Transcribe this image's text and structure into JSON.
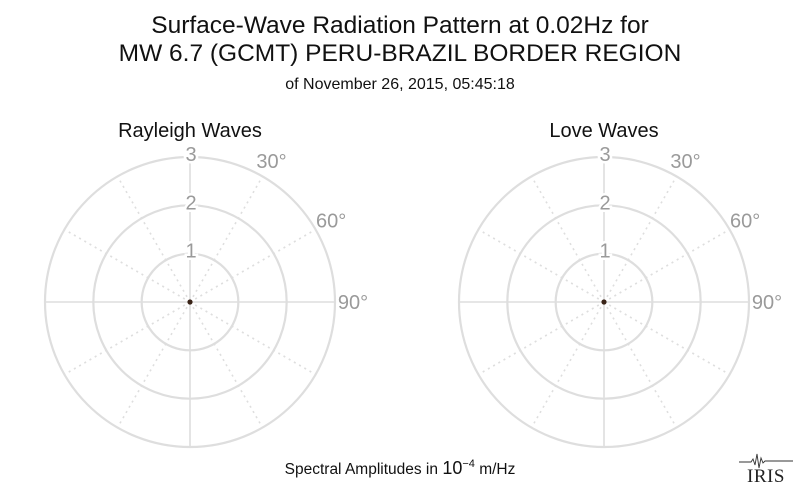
{
  "title_line1": "Surface-Wave Radiation Pattern at 0.02Hz for",
  "title_line2": "MW 6.7 (GCMT) PERU-BRAZIL BORDER REGION",
  "subtitle": "of November 26, 2015, 05:45:18",
  "footer": {
    "prefix": "Spectral Amplitudes in ",
    "base": "10",
    "exponent": "−4",
    "unit": " m/Hz"
  },
  "logo_text": "IRIS",
  "colors": {
    "grid": "#dedede",
    "tick_label": "#9a9a9a",
    "marker": "#3a2418",
    "text": "#111111"
  },
  "chart_data": [
    {
      "type": "polar",
      "title": "Rayleigh Waves",
      "r_ticks": [
        "1",
        "2",
        "3"
      ],
      "rlim": [
        0,
        3
      ],
      "theta_ticks": [
        "30°",
        "60°",
        "90°"
      ],
      "theta_grid_step_deg": 30,
      "grid": true,
      "series": [
        {
          "values": [
            0
          ]
        }
      ]
    },
    {
      "type": "polar",
      "title": "Love Waves",
      "r_ticks": [
        "1",
        "2",
        "3"
      ],
      "rlim": [
        0,
        3
      ],
      "theta_ticks": [
        "30°",
        "60°",
        "90°"
      ],
      "theta_grid_step_deg": 30,
      "grid": true,
      "series": [
        {
          "values": [
            0
          ]
        }
      ]
    }
  ]
}
